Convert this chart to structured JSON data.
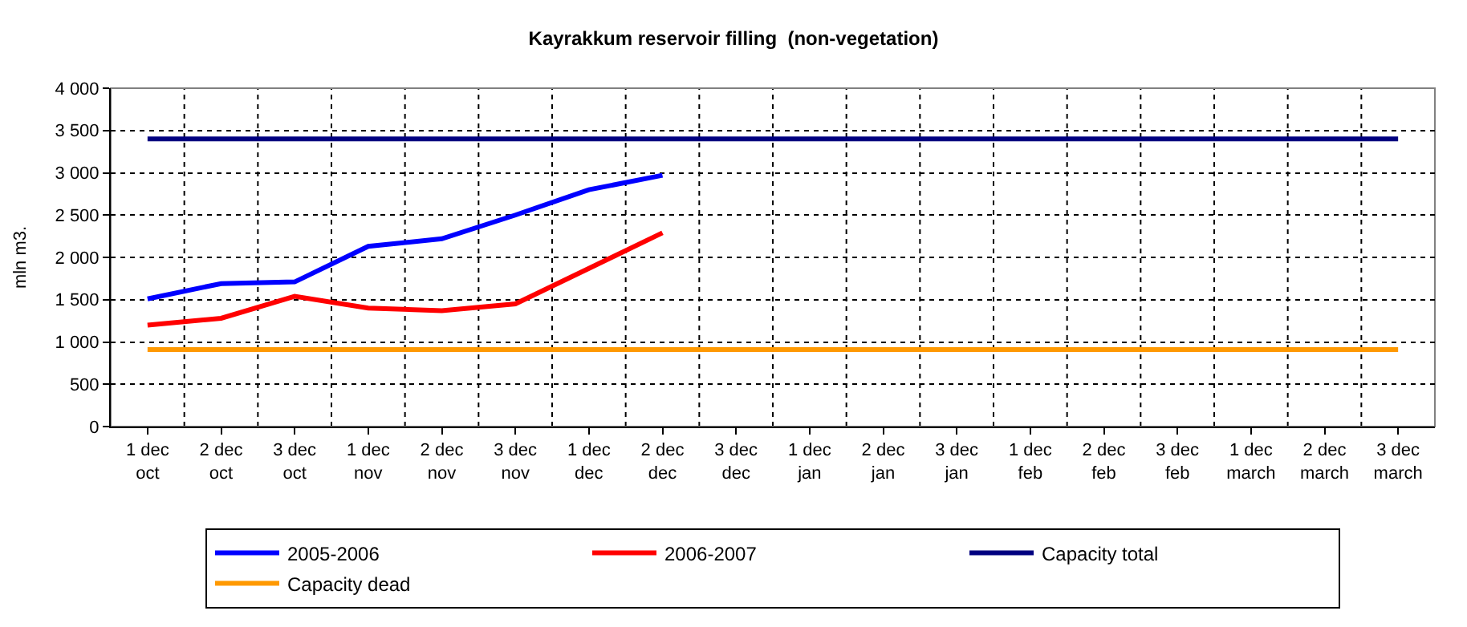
{
  "chart_data": {
    "type": "line",
    "title": "Kayrakkum reservoir filling  (non-vegetation)",
    "ylabel": "mln m3.",
    "categories": [
      "1 dec\noct",
      "2 dec\noct",
      "3 dec\noct",
      "1 dec\nnov",
      "2 dec\nnov",
      "3 dec\nnov",
      "1 dec\ndec",
      "2 dec\ndec",
      "3 dec\ndec",
      "1 dec\njan",
      "2 dec\njan",
      "3 dec\njan",
      "1 dec\nfeb",
      "2 dec\nfeb",
      "3 dec\nfeb",
      "1 dec\nmarch",
      "2 dec\nmarch",
      "3 dec\nmarch"
    ],
    "series": [
      {
        "name": "2005-2006",
        "color": "#0000ff",
        "values": [
          1510,
          1690,
          1710,
          2130,
          2220,
          2500,
          2800,
          2970,
          null,
          null,
          null,
          null,
          null,
          null,
          null,
          null,
          null,
          null
        ]
      },
      {
        "name": "2006-2007",
        "color": "#ff0000",
        "values": [
          1200,
          1280,
          1540,
          1400,
          1370,
          1450,
          1870,
          2290,
          null,
          null,
          null,
          null,
          null,
          null,
          null,
          null,
          null,
          null
        ]
      },
      {
        "name": "Capacity total",
        "color": "#000080",
        "values": [
          3400,
          3400,
          3400,
          3400,
          3400,
          3400,
          3400,
          3400,
          3400,
          3400,
          3400,
          3400,
          3400,
          3400,
          3400,
          3400,
          3400,
          3400
        ]
      },
      {
        "name": "Capacity dead",
        "color": "#ff9900",
        "values": [
          910,
          910,
          910,
          910,
          910,
          910,
          910,
          910,
          910,
          910,
          910,
          910,
          910,
          910,
          910,
          910,
          910,
          910
        ]
      }
    ],
    "ylim": [
      0,
      4000
    ],
    "yticks": [
      0,
      {
        "value": 500,
        "label": "500"
      },
      {
        "value": 1000,
        "label": "1 000"
      },
      {
        "value": 1500,
        "label": "1 500"
      },
      {
        "value": 2000,
        "label": "2 000"
      },
      {
        "value": 2500,
        "label": "2 500"
      },
      {
        "value": 3000,
        "label": "3 000"
      },
      {
        "value": 3500,
        "label": "3 500"
      },
      {
        "value": 4000,
        "label": "4 000"
      }
    ],
    "grid": true,
    "legend": "bottom",
    "marker": "none",
    "line_style": "solid"
  }
}
